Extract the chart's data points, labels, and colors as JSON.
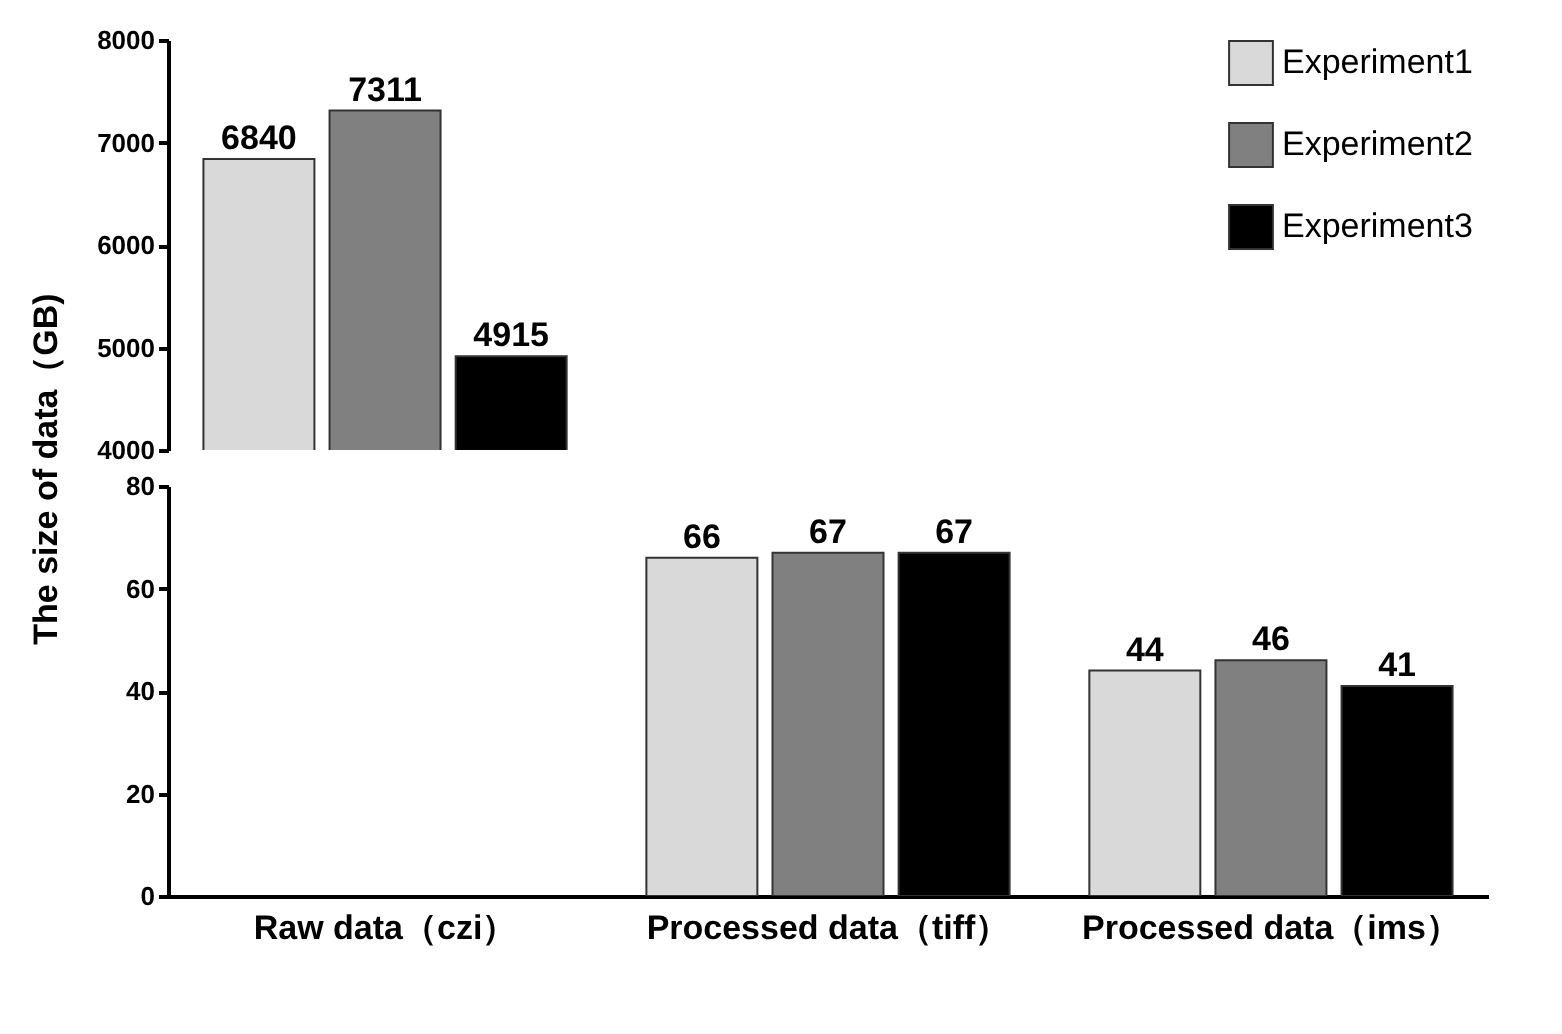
{
  "chart_data": [
    {
      "type": "bar",
      "categories": [
        null
      ],
      "series": [
        {
          "name": "Experiment1",
          "color": "#d9d9d9",
          "values": [
            6840
          ]
        },
        {
          "name": "Experiment2",
          "color": "#808080",
          "values": [
            7311
          ]
        },
        {
          "name": "Experiment3",
          "color": "#000000",
          "values": [
            4915
          ]
        }
      ],
      "ylim": [
        4000,
        8000
      ],
      "yticks": [
        4000,
        5000,
        6000,
        7000,
        8000
      ],
      "data_labels": true,
      "legend": "top right",
      "tick_labels": "y",
      "grid": false
    },
    {
      "type": "bar",
      "categories": [
        "Raw data（czi）",
        "Processed data（tiff）",
        "Processed data（ims）"
      ],
      "ylabel": "The size of data（GB)",
      "series": [
        {
          "color": "#d9d9d9",
          "values": [
            null,
            66,
            44
          ]
        },
        {
          "color": "#808080",
          "values": [
            null,
            67,
            46
          ]
        },
        {
          "color": "#000000",
          "values": [
            null,
            67,
            41
          ]
        }
      ],
      "ylim": [
        0,
        80
      ],
      "yticks": [
        0,
        20,
        40,
        60,
        80
      ],
      "data_labels": true,
      "grid": false
    }
  ]
}
